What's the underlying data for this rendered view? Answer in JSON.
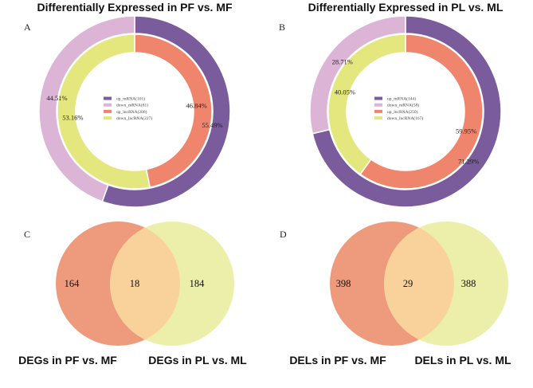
{
  "chart_data": [
    {
      "type": "donut",
      "panel": "A",
      "title": "Differentially Expressed in PF vs. MF",
      "legend": [
        {
          "label": "up_mRNA(101)",
          "color": "#7a5b9c"
        },
        {
          "label": "down_mRNA(81)",
          "color": "#dbb4d6"
        },
        {
          "label": "up_lncRNA(200)",
          "color": "#ee856c"
        },
        {
          "label": "down_lncRNA(227)",
          "color": "#e4e67e"
        }
      ],
      "rings": [
        {
          "name": "mRNA",
          "slices": [
            {
              "name": "up_mRNA",
              "value": 101,
              "label": "55.49%",
              "color": "#7a5b9c"
            },
            {
              "name": "down_mRNA",
              "value": 81,
              "label": "44.51%",
              "color": "#dbb4d6"
            }
          ]
        },
        {
          "name": "lncRNA",
          "slices": [
            {
              "name": "up_lncRNA",
              "value": 200,
              "label": "46.84%",
              "color": "#ee856c"
            },
            {
              "name": "down_lncRNA",
              "value": 227,
              "label": "53.16%",
              "color": "#e4e67e"
            }
          ]
        }
      ]
    },
    {
      "type": "donut",
      "panel": "B",
      "title": "Differentially Expressed in PL vs. ML",
      "legend": [
        {
          "label": "up_mRNA(144)",
          "color": "#7a5b9c"
        },
        {
          "label": "down_mRNA(58)",
          "color": "#dbb4d6"
        },
        {
          "label": "up_lncRNA(250)",
          "color": "#ee856c"
        },
        {
          "label": "down_lncRNA(167)",
          "color": "#e4e67e"
        }
      ],
      "rings": [
        {
          "name": "mRNA",
          "slices": [
            {
              "name": "up_mRNA",
              "value": 144,
              "label": "71.29%",
              "color": "#7a5b9c"
            },
            {
              "name": "down_mRNA",
              "value": 58,
              "label": "28.71%",
              "color": "#dbb4d6"
            }
          ]
        },
        {
          "name": "lncRNA",
          "slices": [
            {
              "name": "up_lncRNA",
              "value": 250,
              "label": "59.95%",
              "color": "#ee856c"
            },
            {
              "name": "down_lncRNA",
              "value": 167,
              "label": "40.05%",
              "color": "#e4e67e"
            }
          ]
        }
      ]
    },
    {
      "type": "venn",
      "panel": "C",
      "sets": [
        {
          "label": "DEGs in PF vs. MF",
          "only": "164",
          "color": "#ee9a7c"
        },
        {
          "label": "DEGs in PL vs. ML",
          "only": "184",
          "color": "#ecefa9"
        }
      ],
      "overlap": "18",
      "overlap_color": "#f9d29b"
    },
    {
      "type": "venn",
      "panel": "D",
      "sets": [
        {
          "label": "DELs in PF vs. MF",
          "only": "398",
          "color": "#ee9a7c"
        },
        {
          "label": "DELs in PL vs. ML",
          "only": "388",
          "color": "#ecefa9"
        }
      ],
      "overlap": "29",
      "overlap_color": "#f9d29b"
    }
  ]
}
